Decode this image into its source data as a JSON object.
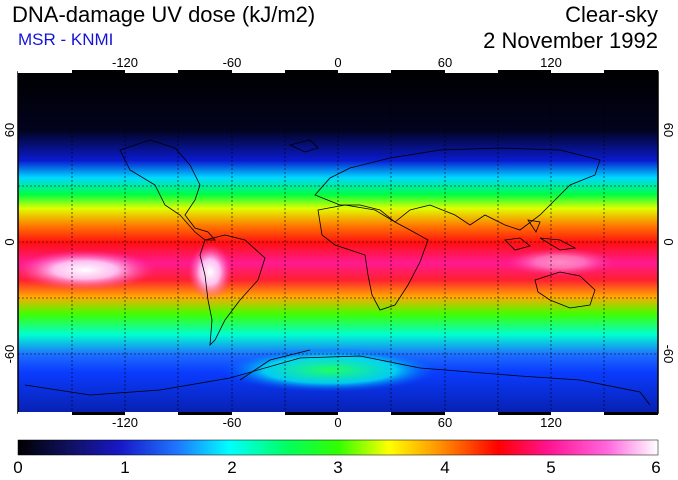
{
  "header": {
    "title": "DNA-damage UV dose (kJ/m2)",
    "subtitle": "MSR - KNMI",
    "condition": "Clear-sky",
    "date": "2 November 1992"
  },
  "map": {
    "longitude_ticks": [
      "-120",
      "-60",
      "0",
      "60",
      "120"
    ],
    "latitude_ticks": [
      "60",
      "0",
      "-60"
    ]
  },
  "colorbar": {
    "labels": [
      "0",
      "1",
      "2",
      "3",
      "4",
      "5",
      "6"
    ],
    "colors": [
      "#000000",
      "#14148c",
      "#1e64ff",
      "#00ffff",
      "#00ff00",
      "#ffff00",
      "#ff8000",
      "#ff0000",
      "#ff1493",
      "#ff66cc",
      "#ffffff"
    ]
  }
}
